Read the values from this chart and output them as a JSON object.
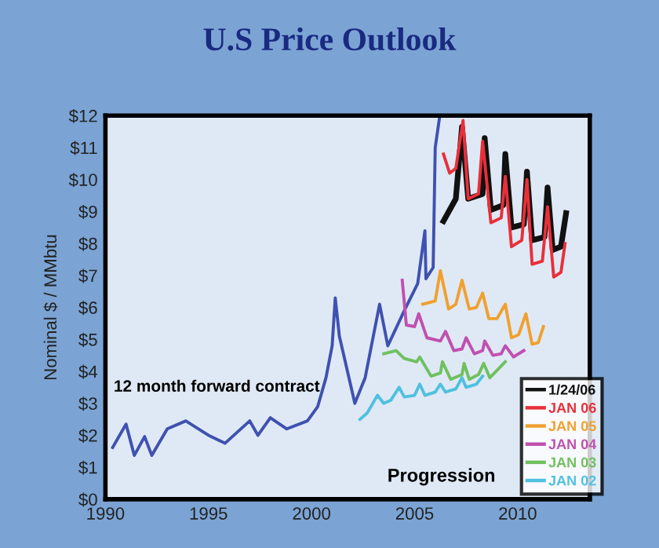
{
  "chart_data": {
    "type": "line",
    "title": "U.S Price Outlook",
    "ylabel": "Nominal $ / MMbtu",
    "xlim": [
      1990,
      2013.5
    ],
    "xticks": [
      1990,
      1995,
      2000,
      2005,
      2010
    ],
    "ylim": [
      0,
      12
    ],
    "yticks": [
      {
        "value": 0,
        "label": "$0"
      },
      {
        "value": 1,
        "label": "$1"
      },
      {
        "value": 2,
        "label": "$2"
      },
      {
        "value": 3,
        "label": "$3"
      },
      {
        "value": 4,
        "label": "$4"
      },
      {
        "value": 5,
        "label": "$5"
      },
      {
        "value": 6,
        "label": "$6"
      },
      {
        "value": 7,
        "label": "$7"
      },
      {
        "value": 8,
        "label": "$8"
      },
      {
        "value": 9,
        "label": "$9"
      },
      {
        "value": 10,
        "label": "$10"
      },
      {
        "value": 11,
        "label": "$11"
      },
      {
        "value": 12,
        "label": "$12"
      }
    ],
    "grid": false,
    "legend": "bottom right",
    "marker": "none",
    "line_style": "solid",
    "annotations": [
      "12 month forward contract",
      "Progression"
    ],
    "series": [
      {
        "color": "#3f51b0",
        "x": [
          1990.35,
          1991.0,
          1991.4,
          1991.9,
          1992.25,
          1993.0,
          1993.9,
          1995.0,
          1995.8,
          1997.0,
          1997.4,
          1998.0,
          1998.8,
          1999.8,
          2000.3,
          2000.7,
          2001.0,
          2001.15,
          2001.35,
          2002.1,
          2002.6,
          2003.3,
          2003.7,
          2004.5,
          2005.15,
          2005.5,
          2005.55,
          2005.9,
          2006.0,
          2006.2
        ],
        "values": [
          1.62,
          2.35,
          1.37,
          1.96,
          1.37,
          2.2,
          2.45,
          2.0,
          1.75,
          2.45,
          2.0,
          2.55,
          2.2,
          2.45,
          2.9,
          3.8,
          4.8,
          6.3,
          5.1,
          3.0,
          3.8,
          6.1,
          4.8,
          5.9,
          6.75,
          8.4,
          6.9,
          7.25,
          11.0,
          11.9
        ]
      },
      {
        "name": "1/24/06",
        "color": "#111111",
        "x": [
          2006.4,
          2007.0,
          2007.3,
          2007.6,
          2008.3,
          2008.4,
          2008.7,
          2009.3,
          2009.4,
          2009.7,
          2010.3,
          2010.45,
          2010.7,
          2011.3,
          2011.45,
          2011.7,
          2012.1,
          2012.35
        ],
        "values": [
          8.7,
          9.4,
          11.65,
          9.4,
          9.55,
          11.3,
          9.05,
          9.2,
          10.8,
          8.5,
          8.6,
          10.25,
          8.1,
          8.2,
          9.75,
          7.8,
          7.9,
          8.95
        ]
      },
      {
        "name": "JAN 06",
        "color": "#e8303a",
        "x": [
          2006.4,
          2006.7,
          2007.0,
          2007.35,
          2007.6,
          2008.1,
          2008.3,
          2008.7,
          2009.2,
          2009.4,
          2009.7,
          2010.2,
          2010.45,
          2010.7,
          2011.2,
          2011.45,
          2011.75,
          2012.1,
          2012.3
        ],
        "values": [
          10.8,
          10.2,
          10.35,
          11.85,
          9.4,
          9.55,
          11.2,
          8.65,
          8.8,
          10.1,
          7.9,
          8.1,
          10.0,
          7.35,
          7.45,
          9.15,
          6.95,
          7.1,
          8.0
        ]
      },
      {
        "name": "JAN 05",
        "color": "#f0a030",
        "x": [
          2005.4,
          2006.0,
          2006.25,
          2006.65,
          2007.0,
          2007.3,
          2007.65,
          2008.0,
          2008.3,
          2008.6,
          2009.0,
          2009.4,
          2009.7,
          2010.05,
          2010.4,
          2010.7,
          2011.0,
          2011.25
        ],
        "values": [
          6.1,
          6.2,
          7.15,
          5.95,
          6.1,
          6.85,
          5.95,
          6.0,
          6.45,
          5.65,
          5.65,
          6.1,
          5.05,
          5.15,
          5.8,
          4.85,
          4.9,
          5.4
        ]
      },
      {
        "name": "JAN 04",
        "color": "#c050b0",
        "x": [
          2004.4,
          2004.6,
          2005.0,
          2005.2,
          2005.6,
          2006.25,
          2006.5,
          2006.9,
          2007.3,
          2007.5,
          2007.9,
          2008.3,
          2008.4,
          2008.8,
          2009.2,
          2009.4,
          2009.8,
          2010.3
        ],
        "values": [
          6.85,
          5.45,
          5.4,
          5.8,
          5.05,
          4.95,
          5.25,
          4.65,
          4.7,
          5.05,
          4.55,
          4.65,
          4.95,
          4.5,
          4.55,
          4.8,
          4.45,
          4.65
        ]
      },
      {
        "name": "JAN 03",
        "color": "#70c060",
        "x": [
          2003.5,
          2004.1,
          2004.5,
          2005.1,
          2005.25,
          2005.8,
          2006.25,
          2006.35,
          2006.75,
          2007.3,
          2007.4,
          2007.65,
          2008.1,
          2008.35,
          2008.65,
          2009.4
        ],
        "values": [
          4.55,
          4.65,
          4.4,
          4.3,
          4.45,
          3.85,
          3.95,
          4.3,
          3.75,
          3.9,
          4.25,
          3.75,
          3.9,
          4.25,
          3.8,
          4.3
        ]
      },
      {
        "name": "JAN 02",
        "color": "#50c0e0",
        "x": [
          2002.35,
          2002.7,
          2003.2,
          2003.5,
          2003.85,
          2004.25,
          2004.5,
          2005.0,
          2005.25,
          2005.5,
          2006.0,
          2006.25,
          2006.5,
          2007.0,
          2007.3,
          2007.5,
          2008.0,
          2008.3
        ],
        "values": [
          2.5,
          2.7,
          3.25,
          3.0,
          3.1,
          3.5,
          3.2,
          3.25,
          3.6,
          3.25,
          3.35,
          3.6,
          3.35,
          3.45,
          3.8,
          3.5,
          3.6,
          3.85
        ]
      }
    ]
  }
}
